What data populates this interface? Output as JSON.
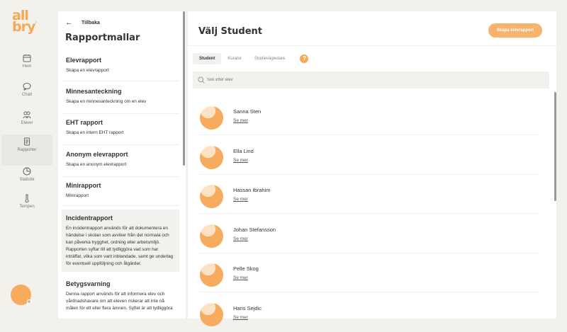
{
  "nav": {
    "logo": "all bry",
    "items": [
      {
        "label": "Hem",
        "icon": "calendar-icon"
      },
      {
        "label": "Chatt",
        "icon": "chat-icon"
      },
      {
        "label": "Elever",
        "icon": "users-icon"
      },
      {
        "label": "Rapporter",
        "icon": "report-icon",
        "active": true
      },
      {
        "label": "Statistik",
        "icon": "pie-chart-icon"
      },
      {
        "label": "Tempen",
        "icon": "thermometer-icon"
      }
    ]
  },
  "panel": {
    "back_label": "Tillbaka",
    "title": "Rapportmallar",
    "templates": [
      {
        "title": "Elevrapport",
        "desc": "Skapa en elevrapport"
      },
      {
        "title": "Minnesanteckning",
        "desc": "Skapa en minnesanteckning om en elev"
      },
      {
        "title": "EHT rapport",
        "desc": "Skapa en intern EHT rapport"
      },
      {
        "title": "Anonym elevrapport",
        "desc": "Skapa en anonym elevrapport"
      },
      {
        "title": "Minirapport",
        "desc": "Minirapport"
      },
      {
        "title": "Incidentrapport",
        "desc": "En incidentrapport används för att dokumentera en händelse i skolan som avviker från det normala och kan påverka trygghet, ordning eller arbetsmiljö. Rapporten syftar till att tydliggöra vad som har inträffat, vilka som varit inblandade, samt ge underlag för eventuell uppföljning och åtgärder."
      },
      {
        "title": "Betygsvarning",
        "desc": "Denna rapport används för att informera elev och vårdnadshavare om att eleven riskerar att inte nå målen för ett eller flera ämnen. Syftet är att tydliggöra"
      }
    ]
  },
  "main": {
    "title": "Välj Student",
    "create_label": "Skapa elevrapport",
    "tabs": [
      "Student",
      "Kurator",
      "Studievägledare"
    ],
    "help": "?",
    "search_placeholder": "Sök efter elev",
    "more_label": "Se mer",
    "students": [
      "Sanna Sten",
      "Ella Lind",
      "Hassan Ibrahim",
      "Johan Stefansson",
      "Pelle Skog",
      "Haris Sejdic"
    ]
  },
  "colors": {
    "accent": "#f7ab5e",
    "background": "#f2f1ec"
  }
}
